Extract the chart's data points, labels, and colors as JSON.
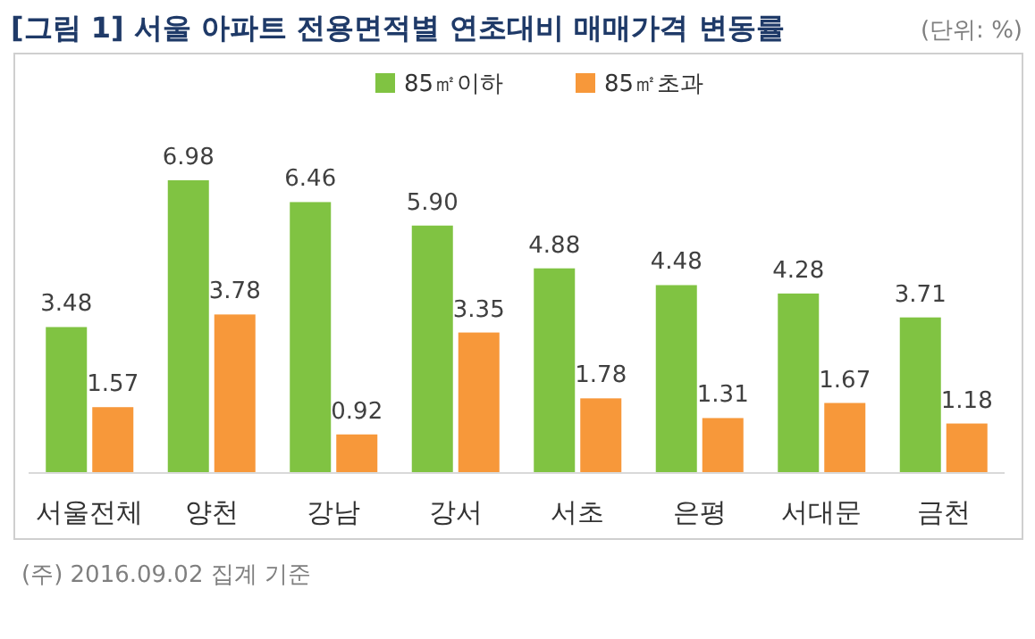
{
  "chart_data": {
    "type": "bar",
    "title": "[그림 1] 서울 아파트 전용면적별 연초대비 매매가격 변동률",
    "annotations": [
      "(단위: %)",
      "(주) 2016.09.02 집계 기준"
    ],
    "categories": [
      "서울전체",
      "양천",
      "강남",
      "강서",
      "서초",
      "은평",
      "서대문",
      "금천"
    ],
    "series": [
      {
        "name": "85㎡이하",
        "color": "#80c342",
        "values": [
          3.48,
          6.98,
          6.46,
          5.9,
          4.88,
          4.48,
          4.28,
          3.71
        ],
        "value_labels": [
          "3.48",
          "6.98",
          "6.46",
          "5.90",
          "4.88",
          "4.48",
          "4.28",
          "3.71"
        ]
      },
      {
        "name": "85㎡초과",
        "color": "#f7983a",
        "values": [
          1.57,
          3.78,
          0.92,
          3.35,
          1.78,
          1.31,
          1.67,
          1.18
        ],
        "value_labels": [
          "1.57",
          "3.78",
          "0.92",
          "3.35",
          "1.78",
          "1.31",
          "1.67",
          "1.18"
        ]
      }
    ],
    "legend": "top"
  }
}
